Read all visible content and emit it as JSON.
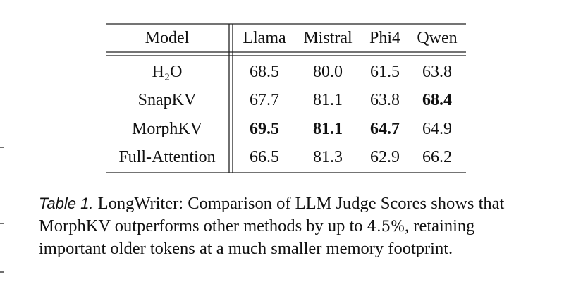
{
  "table": {
    "header": [
      "Model",
      "Llama",
      "Mistral",
      "Phi4",
      "Qwen"
    ],
    "rows": [
      [
        "H₂O",
        "68.5",
        "80.0",
        "61.5",
        "63.8"
      ],
      [
        "SnapKV",
        "67.7",
        "81.1",
        "63.8",
        "68.4"
      ],
      [
        "MorphKV",
        "69.5",
        "81.1",
        "64.7",
        "64.9"
      ],
      [
        "Full-Attention",
        "66.5",
        "81.3",
        "62.9",
        "66.2"
      ]
    ],
    "bold": [
      [
        1,
        4
      ],
      [
        2,
        1
      ],
      [
        2,
        2
      ],
      [
        2,
        3
      ]
    ]
  },
  "caption": {
    "label": "Table 1.",
    "parts": [
      "LongWriter:  Comparison of LLM Judge Scores shows that MorphKV outperforms other methods by up to ",
      "4.5%",
      ", retaining important older tokens at a much smaller memory footprint."
    ]
  }
}
